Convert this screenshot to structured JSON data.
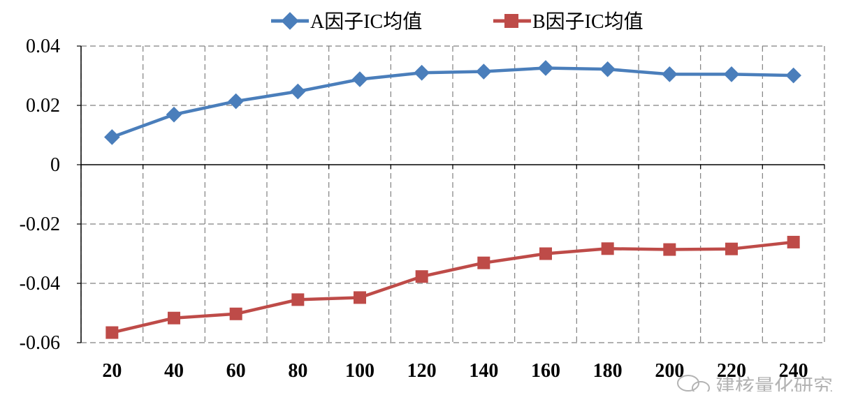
{
  "chart_data": {
    "type": "line",
    "categories": [
      "20",
      "40",
      "60",
      "80",
      "100",
      "120",
      "140",
      "160",
      "180",
      "200",
      "220",
      "240"
    ],
    "series": [
      {
        "name": "A因子IC均值",
        "color": "#4a7ebb",
        "marker": "diamond",
        "values": [
          0.0093,
          0.0169,
          0.0214,
          0.0247,
          0.0288,
          0.031,
          0.0314,
          0.0326,
          0.0322,
          0.0305,
          0.0305,
          0.0301
        ]
      },
      {
        "name": "B因子IC均值",
        "color": "#be4b48",
        "marker": "square",
        "values": [
          -0.0566,
          -0.0517,
          -0.0503,
          -0.0455,
          -0.0448,
          -0.0377,
          -0.0331,
          -0.03,
          -0.0283,
          -0.0286,
          -0.0284,
          -0.0261
        ]
      }
    ],
    "yticks": [
      "0.04",
      "0.02",
      "0",
      "-0.02",
      "-0.04",
      "-0.06"
    ],
    "ylim": [
      -0.06,
      0.04
    ],
    "grid": true,
    "legend_position": "top-center"
  },
  "watermark": {
    "text": "建核量化研究",
    "icon": "wechat-icon"
  }
}
